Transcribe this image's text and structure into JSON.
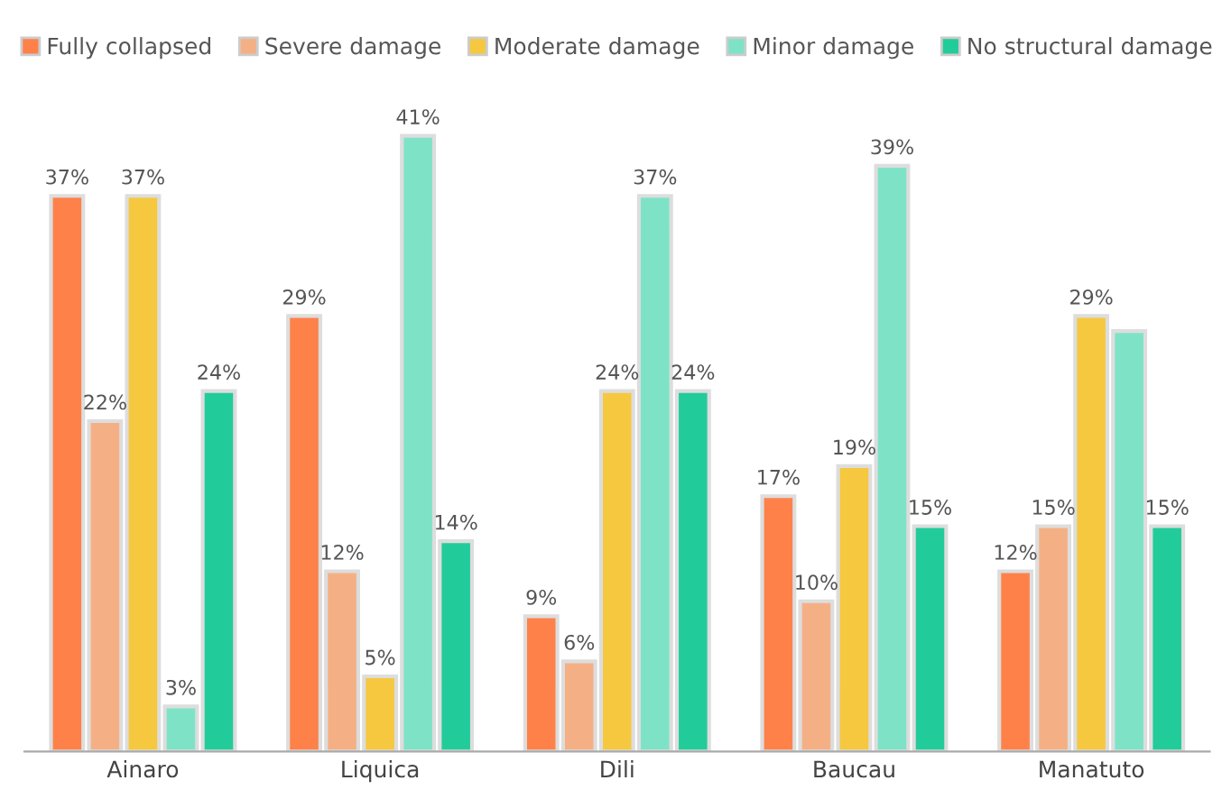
{
  "chart_data": {
    "type": "bar",
    "categories": [
      "Ainaro",
      "Liquica",
      "Dili",
      "Baucau",
      "Manatuto"
    ],
    "series": [
      {
        "name": "Fully collapsed",
        "color": "#fe814a",
        "values": [
          37,
          29,
          9,
          17,
          12
        ],
        "value_labels": [
          "37%",
          "29%",
          "9%",
          "17%",
          "12%"
        ]
      },
      {
        "name": "Severe damage",
        "color": "#f4b084",
        "values": [
          22,
          12,
          6,
          10,
          15
        ],
        "value_labels": [
          "22%",
          "12%",
          "6%",
          "10%",
          "15%"
        ]
      },
      {
        "name": "Moderate damage",
        "color": "#f5c840",
        "values": [
          37,
          5,
          24,
          19,
          29
        ],
        "value_labels": [
          "37%",
          "5%",
          "24%",
          "19%",
          "29%"
        ]
      },
      {
        "name": "Minor damage",
        "color": "#7ee3c6",
        "values": [
          3,
          41,
          37,
          39,
          28
        ],
        "value_labels": [
          "3%",
          "41%",
          "37%",
          "39%",
          null
        ]
      },
      {
        "name": "No structural damage",
        "color": "#22cc9a",
        "values": [
          24,
          14,
          24,
          15,
          15
        ],
        "value_labels": [
          "24%",
          "14%",
          "24%",
          "15%",
          "15%"
        ]
      }
    ],
    "legend": "top",
    "grid": false
  }
}
